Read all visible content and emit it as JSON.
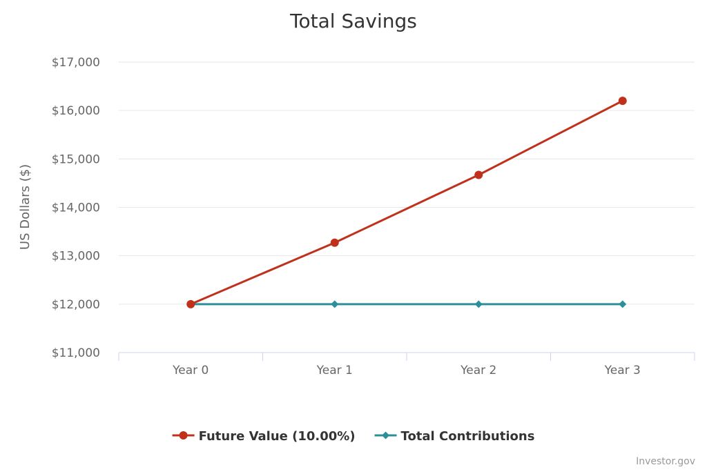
{
  "chart_data": {
    "type": "line",
    "title": "Total Savings",
    "xlabel": "",
    "ylabel": "US Dollars ($)",
    "categories": [
      "Year 0",
      "Year 1",
      "Year 2",
      "Year 3"
    ],
    "ylim": [
      11000,
      17000
    ],
    "yticks": [
      11000,
      12000,
      13000,
      14000,
      15000,
      16000,
      17000
    ],
    "ytick_labels": [
      "$11,000",
      "$12,000",
      "$13,000",
      "$14,000",
      "$15,000",
      "$16,000",
      "$17,000"
    ],
    "grid": true,
    "legend_position": "bottom-center",
    "series": [
      {
        "name": "Future Value (10.00%)",
        "values": [
          12000,
          13270,
          14670,
          16200
        ],
        "color": "#c0301a",
        "marker": "circle"
      },
      {
        "name": "Total Contributions",
        "values": [
          12000,
          12000,
          12000,
          12000
        ],
        "color": "#2a8f98",
        "marker": "diamond"
      }
    ]
  },
  "credits": "Investor.gov"
}
